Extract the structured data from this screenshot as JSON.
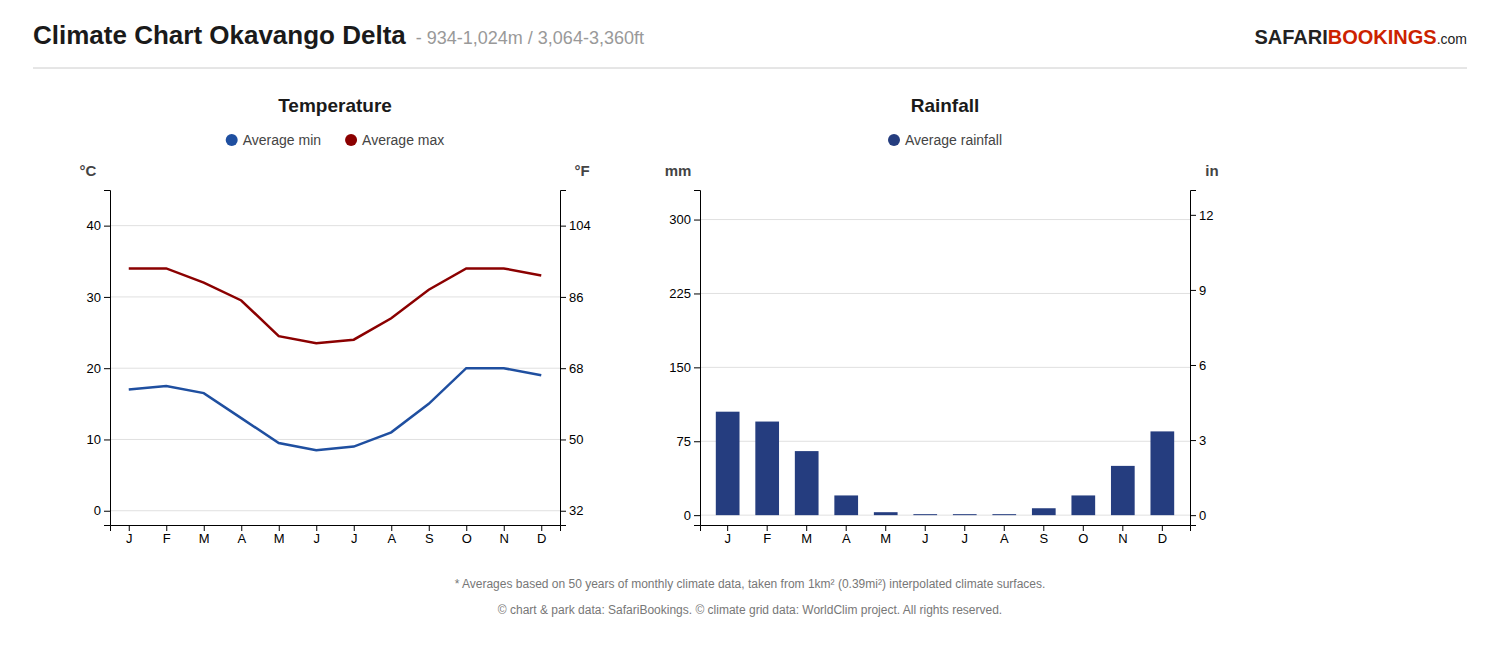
{
  "title": "Climate Chart Okavango Delta",
  "subtitle": "- 934-1,024m / 3,064-3,360ft",
  "annotations": [
    "SAFARI",
    "BOOKINGS",
    ".com",
    "* Averages based on 50 years of monthly climate data, taken from 1km² (0.39mi²) interpolated climate surfaces.",
    "© chart & park data: SafariBookings. © climate grid data: WorldClim project. All rights reserved."
  ],
  "chart_data": [
    {
      "type": "line",
      "title": "Temperature",
      "categories": [
        "J",
        "F",
        "M",
        "A",
        "M",
        "J",
        "J",
        "A",
        "S",
        "O",
        "N",
        "D"
      ],
      "series": [
        {
          "name": "Average min",
          "color": "#1f4fa0",
          "values": [
            17,
            17.5,
            16.5,
            13,
            9.5,
            8.5,
            9,
            11,
            15,
            20,
            20,
            19
          ]
        },
        {
          "name": "Average max",
          "color": "#8b0000",
          "values": [
            34,
            34,
            32,
            29.5,
            24.5,
            23.5,
            24,
            27,
            31,
            34,
            34,
            33
          ]
        }
      ],
      "ylabel": "°C",
      "y2label": "°F",
      "ylim": [
        -2,
        45
      ],
      "yticks": [
        0,
        10,
        20,
        30,
        40
      ],
      "y2lim": [
        28.4,
        113
      ],
      "y2ticks": [
        32,
        50,
        68,
        86,
        104
      ],
      "grid": true,
      "legend": "top"
    },
    {
      "type": "bar",
      "title": "Rainfall",
      "categories": [
        "J",
        "F",
        "M",
        "A",
        "M",
        "J",
        "J",
        "A",
        "S",
        "O",
        "N",
        "D"
      ],
      "series": [
        {
          "name": "Average rainfall",
          "color": "#253d7f",
          "values": [
            105,
            95,
            65,
            20,
            3,
            1,
            1,
            1,
            7,
            20,
            50,
            85
          ]
        }
      ],
      "ylabel": "mm",
      "y2label": "in",
      "ylim": [
        -10,
        330
      ],
      "yticks": [
        0,
        75,
        150,
        225,
        300
      ],
      "y2lim": [
        -0.3937007874015748,
        12.992125984251969
      ],
      "y2ticks": [
        0,
        3,
        6,
        9,
        12
      ],
      "grid": true,
      "legend": "top"
    }
  ]
}
